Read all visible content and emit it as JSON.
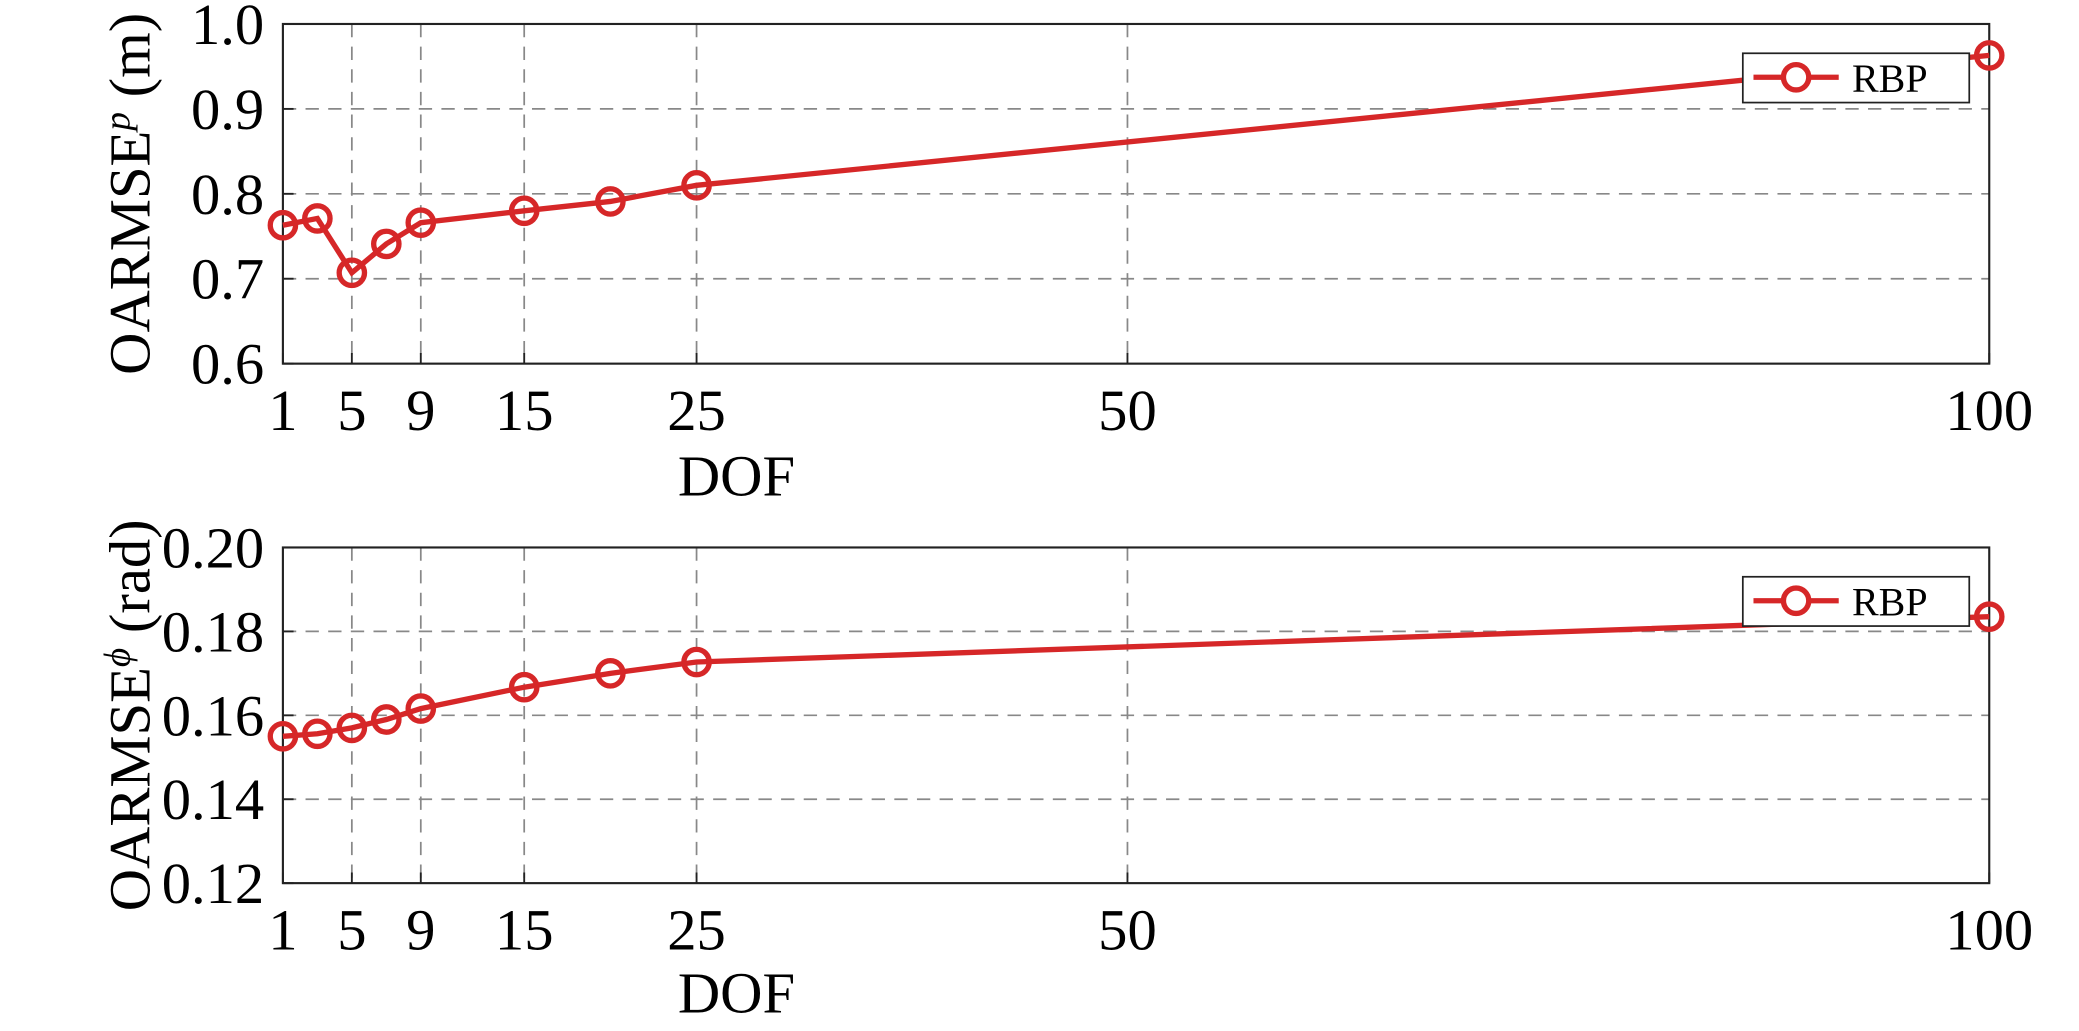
{
  "chart_data": [
    {
      "type": "line",
      "xlabel": "DOF",
      "ylabel": {
        "main": "OARMSE",
        "sup": "p",
        "unit": " (m)"
      },
      "xlim": [
        1,
        100
      ],
      "ylim": [
        0.6,
        1.0
      ],
      "xticks": [
        1,
        5,
        9,
        15,
        25,
        50,
        100
      ],
      "xtick_labels": [
        "1",
        "5",
        "9",
        "15",
        "25",
        "50",
        "100"
      ],
      "yticks": [
        0.6,
        0.7,
        0.8,
        0.9,
        1.0
      ],
      "ytick_labels": [
        "0.6",
        "0.7",
        "0.8",
        "0.9",
        "1.0"
      ],
      "grid": true,
      "legend": "top-right",
      "x": [
        1,
        3,
        5,
        7,
        9,
        15,
        20,
        25,
        100
      ],
      "series": [
        {
          "name": "RBP",
          "color": "#d62728",
          "marker": "circle",
          "values": [
            0.763,
            0.771,
            0.707,
            0.741,
            0.766,
            0.78,
            0.791,
            0.81,
            0.963
          ]
        }
      ]
    },
    {
      "type": "line",
      "xlabel": "DOF",
      "ylabel": {
        "main": "OARMSE",
        "sup": "ϕ",
        "unit": " (rad)"
      },
      "xlim": [
        1,
        100
      ],
      "ylim": [
        0.12,
        0.2
      ],
      "xticks": [
        1,
        5,
        9,
        15,
        25,
        50,
        100
      ],
      "xtick_labels": [
        "1",
        "5",
        "9",
        "15",
        "25",
        "50",
        "100"
      ],
      "yticks": [
        0.12,
        0.14,
        0.16,
        0.18,
        0.2
      ],
      "ytick_labels": [
        "0.12",
        "0.14",
        "0.16",
        "0.18",
        "0.20"
      ],
      "grid": true,
      "legend": "top-right",
      "x": [
        1,
        3,
        5,
        7,
        9,
        15,
        20,
        25,
        100
      ],
      "series": [
        {
          "name": "RBP",
          "color": "#d62728",
          "marker": "circle",
          "values": [
            0.155,
            0.1556,
            0.157,
            0.159,
            0.1616,
            0.1667,
            0.17,
            0.1727,
            0.1835
          ]
        }
      ]
    }
  ]
}
